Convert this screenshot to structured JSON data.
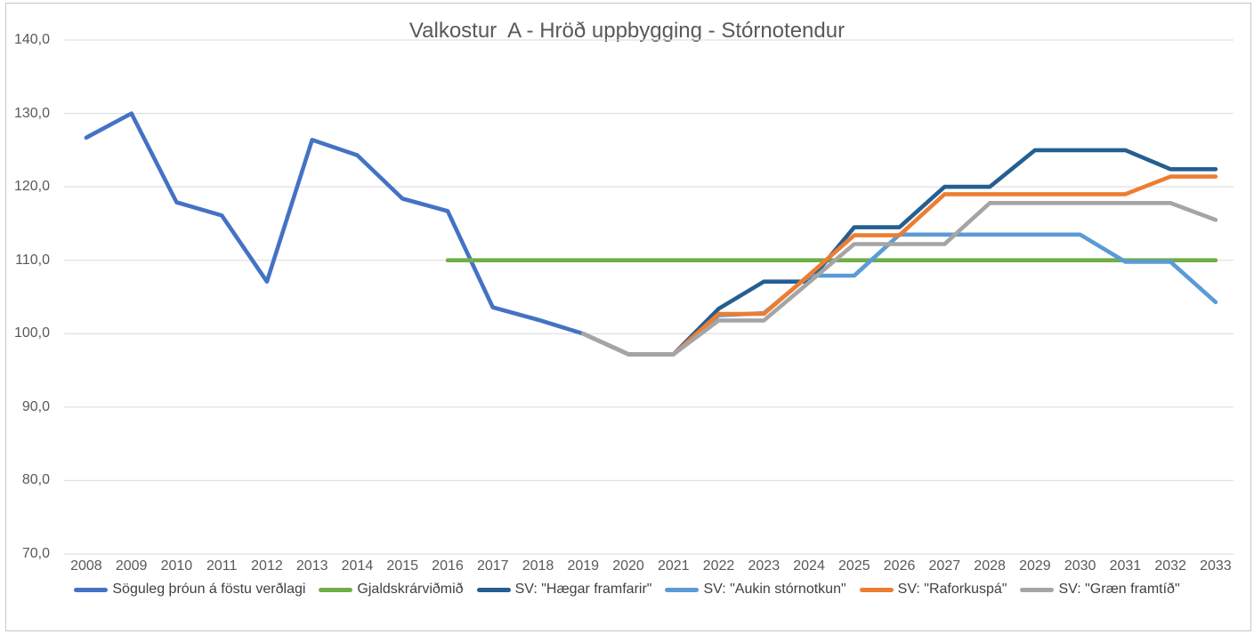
{
  "title": "Valkostur  A - Hröð uppbygging - Stórnotendur",
  "chart_data": {
    "type": "line",
    "title": "Valkostur  A - Hröð uppbygging - Stórnotendur",
    "x": [
      2008,
      2009,
      2010,
      2011,
      2012,
      2013,
      2014,
      2015,
      2016,
      2017,
      2018,
      2019,
      2020,
      2021,
      2022,
      2023,
      2024,
      2025,
      2026,
      2027,
      2028,
      2029,
      2030,
      2031,
      2032,
      2033
    ],
    "xlabel": "",
    "ylabel": "",
    "y_axis": {
      "min": 70,
      "max": 140,
      "tick_step": 10,
      "tick_labels": [
        "70,0",
        "80,0",
        "90,0",
        "100,0",
        "110,0",
        "120,0",
        "130,0",
        "140,0"
      ]
    },
    "grid": "horizontal",
    "legend_position": "bottom",
    "series": [
      {
        "name": "Söguleg þróun á föstu verðlagi",
        "color": "#4472C4",
        "start_year": 2008,
        "values": [
          126.7,
          130.0,
          117.9,
          116.1,
          107.1,
          126.4,
          124.3,
          118.4,
          116.7,
          103.6,
          101.9,
          100.0
        ]
      },
      {
        "name": "Gjaldskrárviðmið",
        "color": "#70AD47",
        "start_year": 2016,
        "values": [
          110.0,
          110.0,
          110.0,
          110.0,
          110.0,
          110.0,
          110.0,
          110.0,
          110.0,
          110.0,
          110.0,
          110.0,
          110.0,
          110.0,
          110.0,
          110.0,
          110.0,
          110.0
        ]
      },
      {
        "name": "SV: \"Hægar framfarir\"",
        "color": "#255E91",
        "start_year": 2019,
        "values": [
          100.0,
          97.2,
          97.2,
          103.4,
          107.1,
          107.1,
          114.5,
          114.5,
          120.0,
          120.0,
          125.0,
          125.0,
          125.0,
          122.4,
          122.4
        ]
      },
      {
        "name": "SV: \"Aukin stórnotkun\"",
        "color": "#5B9BD5",
        "start_year": 2019,
        "values": [
          100.0,
          97.2,
          97.2,
          102.5,
          102.8,
          107.9,
          107.9,
          113.5,
          113.5,
          113.5,
          113.5,
          113.5,
          109.8,
          109.8,
          104.3
        ]
      },
      {
        "name": "SV: \"Raforkuspá\"",
        "color": "#ED7D31",
        "start_year": 2019,
        "values": [
          100.0,
          97.2,
          97.2,
          102.7,
          102.7,
          108.0,
          113.4,
          113.4,
          119.0,
          119.0,
          119.0,
          119.0,
          119.0,
          121.4,
          121.4
        ]
      },
      {
        "name": "SV: \"Græn framtíð\"",
        "color": "#A5A5A5",
        "start_year": 2019,
        "values": [
          100.0,
          97.2,
          97.2,
          101.8,
          101.8,
          107.0,
          112.2,
          112.2,
          112.2,
          117.8,
          117.8,
          117.8,
          117.8,
          117.8,
          115.5
        ]
      }
    ],
    "colors": {
      "gridline": "#D9D9D9",
      "axis_text": "#595959",
      "title_text": "#595959",
      "legend_text": "#414141",
      "border": "#C9C7C5",
      "background": "#FFFFFF"
    }
  }
}
